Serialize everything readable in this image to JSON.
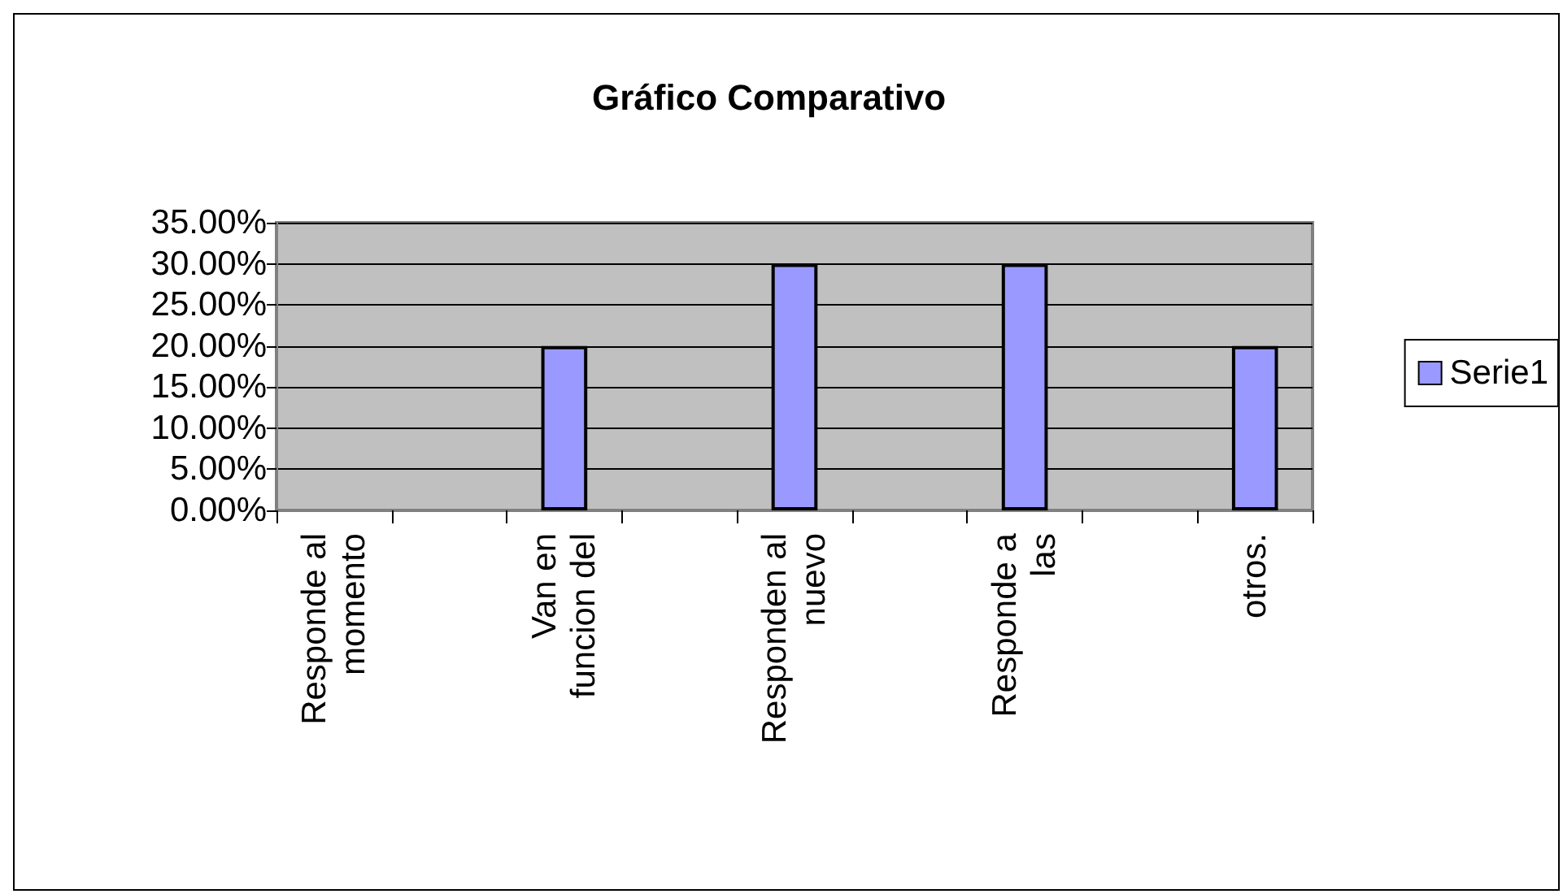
{
  "chart_data": {
    "type": "bar",
    "title": "Gráfico Comparativo",
    "categories": [
      "Responde al\nmomento",
      null,
      "Van en\nfuncion del",
      null,
      "Responden al\nnuevo",
      null,
      "Responde a\nlas",
      null,
      "otros."
    ],
    "series": [
      {
        "name": "Serie1",
        "color": "#9999ff",
        "values": [
          null,
          null,
          20,
          null,
          30,
          null,
          30,
          null,
          20
        ]
      }
    ],
    "ylim": [
      0,
      35
    ],
    "yticks": [
      {
        "value": 0,
        "label": "0.00%"
      },
      {
        "value": 5,
        "label": "5.00%"
      },
      {
        "value": 10,
        "label": "10.00%"
      },
      {
        "value": 15,
        "label": "15.00%"
      },
      {
        "value": 20,
        "label": "20.00%"
      },
      {
        "value": 25,
        "label": "25.00%"
      },
      {
        "value": 30,
        "label": "30.00%"
      },
      {
        "value": 35,
        "label": "35.00%"
      }
    ],
    "grid": "y",
    "legend": "right"
  }
}
